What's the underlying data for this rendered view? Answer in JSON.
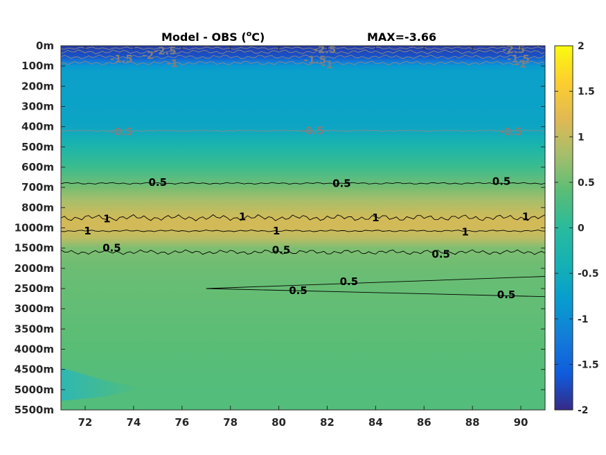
{
  "chart_data": {
    "type": "heatmap",
    "title": "Model - OBS (",
    "title_superscript": "o",
    "title_unit": "C)",
    "max_label": "MAX=-3.66",
    "x": {
      "ticks": [
        72,
        74,
        76,
        78,
        80,
        82,
        84,
        86,
        88,
        90
      ],
      "tick_labels": [
        "72",
        "74",
        "76",
        "78",
        "80",
        "82",
        "84",
        "86",
        "88",
        "90"
      ],
      "range": [
        71,
        91
      ]
    },
    "y": {
      "tick_labels": [
        "0m",
        "100m",
        "200m",
        "300m",
        "400m",
        "500m",
        "600m",
        "700m",
        "800m",
        "1000m",
        "1500m",
        "2000m",
        "2500m",
        "3000m",
        "3500m",
        "4000m",
        "4500m",
        "5000m",
        "5500m"
      ],
      "reversed": true
    },
    "colorbar": {
      "range": [
        -2,
        2
      ],
      "ticks": [
        2,
        1.5,
        1,
        0.5,
        0,
        -0.5,
        -1,
        -1.5,
        -2
      ],
      "tick_labels": [
        "2",
        "1.5",
        "1",
        "0.5",
        "0",
        "-0.5",
        "-1",
        "-1.5",
        "-2"
      ],
      "colormap": "parula"
    },
    "depth_profile": {
      "depth_index": [
        0,
        0.5,
        0.8,
        1,
        1.3,
        2,
        3,
        4,
        5,
        6,
        7,
        7.6,
        8.2,
        8.6,
        9,
        9.5,
        10,
        10.5,
        11,
        12,
        13,
        14,
        15,
        16,
        17,
        18
      ],
      "value": [
        -1.85,
        -1.7,
        -1.2,
        -0.85,
        -0.72,
        -0.7,
        -0.68,
        -0.62,
        -0.25,
        0.15,
        0.55,
        0.8,
        1.0,
        1.1,
        1.1,
        0.95,
        0.6,
        0.55,
        0.5,
        0.47,
        0.45,
        0.42,
        0.4,
        0.37,
        0.35,
        0.35
      ]
    },
    "contours": [
      {
        "level": "-2.5",
        "color": "#808080"
      },
      {
        "level": "-2",
        "color": "#808080"
      },
      {
        "level": "-1.5",
        "color": "#808080"
      },
      {
        "level": "-1",
        "color": "#808080"
      },
      {
        "level": "-0.5",
        "color": "#808080"
      },
      {
        "level": "0.5",
        "color": "#000000"
      },
      {
        "level": "1",
        "color": "#000000"
      }
    ],
    "contour_labels": [
      {
        "text": "-2.5",
        "x": 75.3,
        "y": 0.25,
        "color": "#808080"
      },
      {
        "text": "-2",
        "x": 74.6,
        "y": 0.48,
        "color": "#808080"
      },
      {
        "text": "-1.5",
        "x": 73.5,
        "y": 0.65,
        "color": "#808080"
      },
      {
        "text": "-1",
        "x": 75.6,
        "y": 0.88,
        "color": "#808080"
      },
      {
        "text": "-2.5",
        "x": 81.9,
        "y": 0.18,
        "color": "#808080"
      },
      {
        "text": "-1.5",
        "x": 81.5,
        "y": 0.7,
        "color": "#808080"
      },
      {
        "text": "-1",
        "x": 82.0,
        "y": 0.95,
        "color": "#808080"
      },
      {
        "text": "-2.5",
        "x": 89.7,
        "y": 0.18,
        "color": "#808080"
      },
      {
        "text": "-1.5",
        "x": 89.9,
        "y": 0.65,
        "color": "#808080"
      },
      {
        "text": "-1",
        "x": 90.0,
        "y": 0.9,
        "color": "#808080"
      },
      {
        "text": "-0.5",
        "x": 73.5,
        "y": 4.25,
        "color": "#808080"
      },
      {
        "text": "-0.5",
        "x": 81.4,
        "y": 4.2,
        "color": "#808080"
      },
      {
        "text": "-0.5",
        "x": 89.6,
        "y": 4.25,
        "color": "#808080"
      },
      {
        "text": "0.5",
        "x": 75.0,
        "y": 6.75,
        "color": "#000000"
      },
      {
        "text": "0.5",
        "x": 82.6,
        "y": 6.8,
        "color": "#000000"
      },
      {
        "text": "0.5",
        "x": 89.2,
        "y": 6.7,
        "color": "#000000"
      },
      {
        "text": "1",
        "x": 72.9,
        "y": 8.55,
        "color": "#000000"
      },
      {
        "text": "1",
        "x": 78.5,
        "y": 8.45,
        "color": "#000000"
      },
      {
        "text": "1",
        "x": 84.0,
        "y": 8.5,
        "color": "#000000"
      },
      {
        "text": "1",
        "x": 90.2,
        "y": 8.45,
        "color": "#000000"
      },
      {
        "text": "1",
        "x": 72.1,
        "y": 9.15,
        "color": "#000000"
      },
      {
        "text": "1",
        "x": 79.9,
        "y": 9.15,
        "color": "#000000"
      },
      {
        "text": "1",
        "x": 87.7,
        "y": 9.2,
        "color": "#000000"
      },
      {
        "text": "0.5",
        "x": 73.1,
        "y": 10.0,
        "color": "#000000"
      },
      {
        "text": "0.5",
        "x": 80.1,
        "y": 10.1,
        "color": "#000000"
      },
      {
        "text": "0.5",
        "x": 86.7,
        "y": 10.3,
        "color": "#000000"
      },
      {
        "text": "0.5",
        "x": 82.9,
        "y": 11.65,
        "color": "#000000"
      },
      {
        "text": "0.5",
        "x": 80.8,
        "y": 12.1,
        "color": "#000000"
      },
      {
        "text": "0.5",
        "x": 89.4,
        "y": 12.3,
        "color": "#000000"
      }
    ],
    "grid": false
  }
}
